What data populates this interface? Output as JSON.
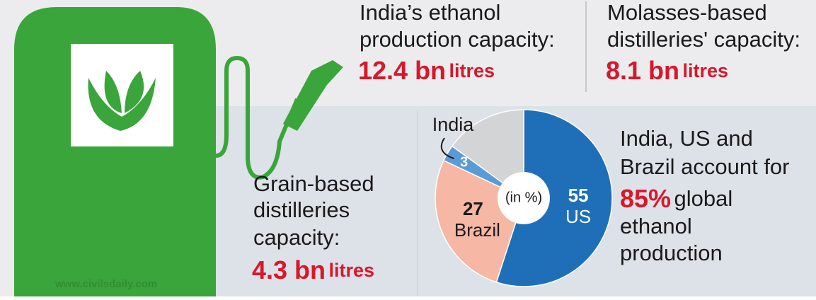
{
  "production": {
    "label": [
      "India’s ethanol",
      "production capacity:"
    ],
    "amount": "12.4 bn",
    "unit": "litres"
  },
  "molasses": {
    "label": [
      "Molasses-based",
      "distilleries' capacity:"
    ],
    "amount": "8.1 bn",
    "unit": "litres"
  },
  "grain": {
    "label": [
      "Grain-based",
      "distilleries",
      "capacity:"
    ],
    "amount": "4.3 bn",
    "unit": "litres"
  },
  "share": {
    "lines": [
      "India, US and",
      "Brazil account for"
    ],
    "highlight": "85%",
    "rest": [
      "global",
      "ethanol",
      "production"
    ]
  },
  "watermark": "www.civilsdaily.com",
  "chart_data": {
    "type": "pie",
    "center_label": "(in %)",
    "categories": [
      "US",
      "Brazil",
      "India",
      null
    ],
    "values": [
      55,
      27,
      3,
      15
    ],
    "colors": [
      "#1f6fb8",
      "#f6b7a5",
      "#5b9bd5",
      "#d3d4d6"
    ]
  }
}
